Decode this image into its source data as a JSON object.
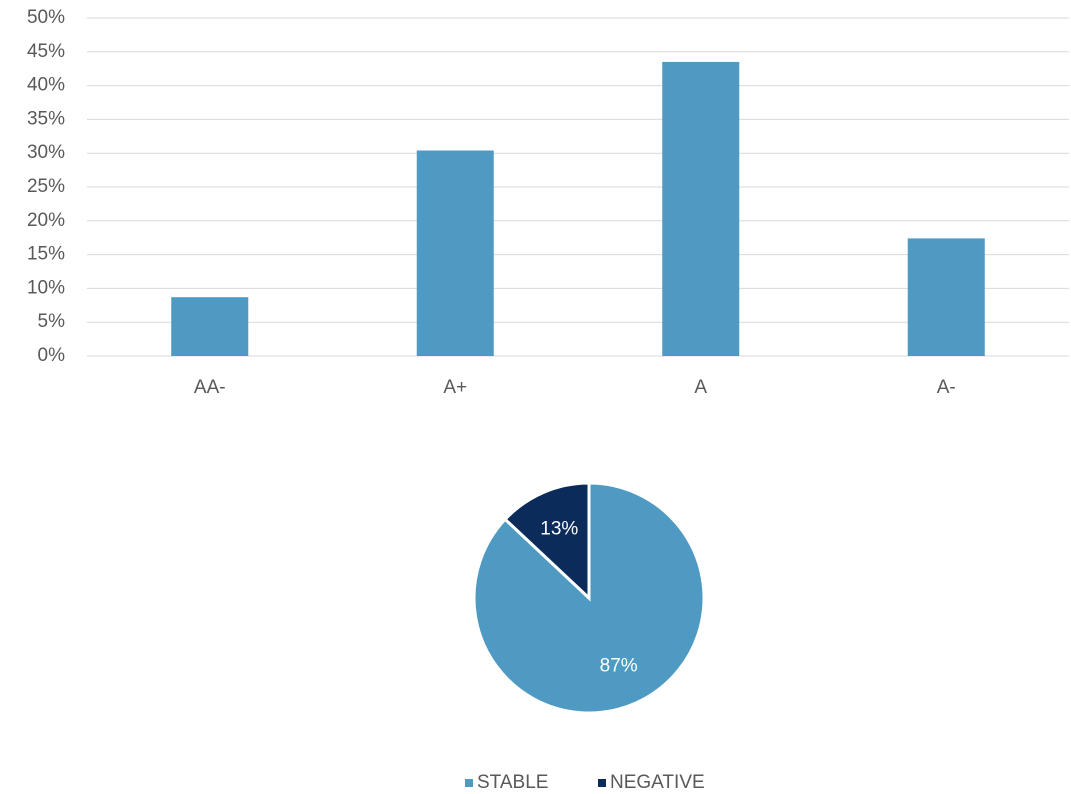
{
  "chart_data": [
    {
      "type": "bar",
      "categories": [
        "AA-",
        "A+",
        "A",
        "A-"
      ],
      "values": [
        8.7,
        30.4,
        43.5,
        17.4
      ],
      "color": "#4e9ac2",
      "ylim": [
        0,
        50
      ],
      "yticks": [
        {
          "value": 0,
          "label": "0%"
        },
        {
          "value": 5,
          "label": "5%"
        },
        {
          "value": 10,
          "label": "10%"
        },
        {
          "value": 15,
          "label": "15%"
        },
        {
          "value": 20,
          "label": "20%"
        },
        {
          "value": 25,
          "label": "25%"
        },
        {
          "value": 30,
          "label": "30%"
        },
        {
          "value": 35,
          "label": "35%"
        },
        {
          "value": 40,
          "label": "40%"
        },
        {
          "value": 45,
          "label": "45%"
        },
        {
          "value": 50,
          "label": "50%"
        }
      ],
      "grid": true
    },
    {
      "type": "pie",
      "categories": [
        "STABLE",
        "NEGATIVE"
      ],
      "values": [
        87,
        13
      ],
      "value_labels": [
        "87%",
        "13%"
      ],
      "colors": [
        "#4e9ac2",
        "#0b2b5a"
      ],
      "legend": "bottom"
    }
  ]
}
